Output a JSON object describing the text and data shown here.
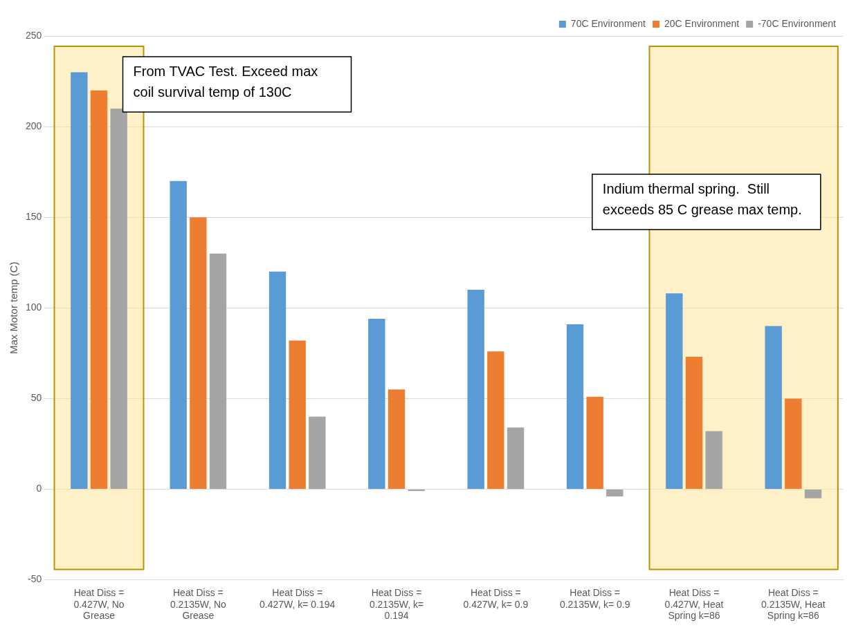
{
  "chart_data": {
    "type": "bar",
    "categories": [
      "Heat Diss = 0.427W, No Grease",
      "Heat Diss = 0.2135W, No Grease",
      "Heat Diss = 0.427W, k= 0.194",
      "Heat Diss = 0.2135W, k= 0.194",
      "Heat Diss = 0.427W, k= 0.9",
      "Heat Diss = 0.2135W, k= 0.9",
      "Heat Diss = 0.427W, Heat Spring k=86",
      "Heat Diss = 0.2135W, Heat Spring k=86"
    ],
    "series": [
      {
        "name": "70C Environment",
        "color": "#5b9bd5",
        "values": [
          230,
          170,
          120,
          94,
          110,
          91,
          108,
          90
        ]
      },
      {
        "name": "20C Environment",
        "color": "#ed7d31",
        "values": [
          220,
          150,
          82,
          55,
          76,
          51,
          73,
          50
        ]
      },
      {
        "name": "-70C Environment",
        "color": "#a5a5a5",
        "values": [
          210,
          130,
          40,
          -1,
          34,
          -4,
          32,
          -5
        ]
      }
    ],
    "ylabel": "Max Motor temp (C)",
    "ylim": [
      -50,
      250
    ],
    "yticks": [
      -50,
      0,
      50,
      100,
      150,
      200,
      250
    ],
    "grid": "y",
    "legend": "top right",
    "bands": [
      {
        "axis": "x",
        "from": "Heat Diss = 0.427W, No Grease",
        "to": "Heat Diss = 0.427W, No Grease",
        "color": "#ffe699",
        "label": "From TVAC Test. Exceed max coil survival temp of 130C"
      },
      {
        "axis": "x",
        "from": "Heat Diss = 0.427W, Heat Spring k=86",
        "to": "Heat Diss = 0.2135W, Heat Spring k=86",
        "color": "#ffe699",
        "label": "Indium thermal spring.  Still exceeds 85 C grease max temp."
      }
    ]
  }
}
